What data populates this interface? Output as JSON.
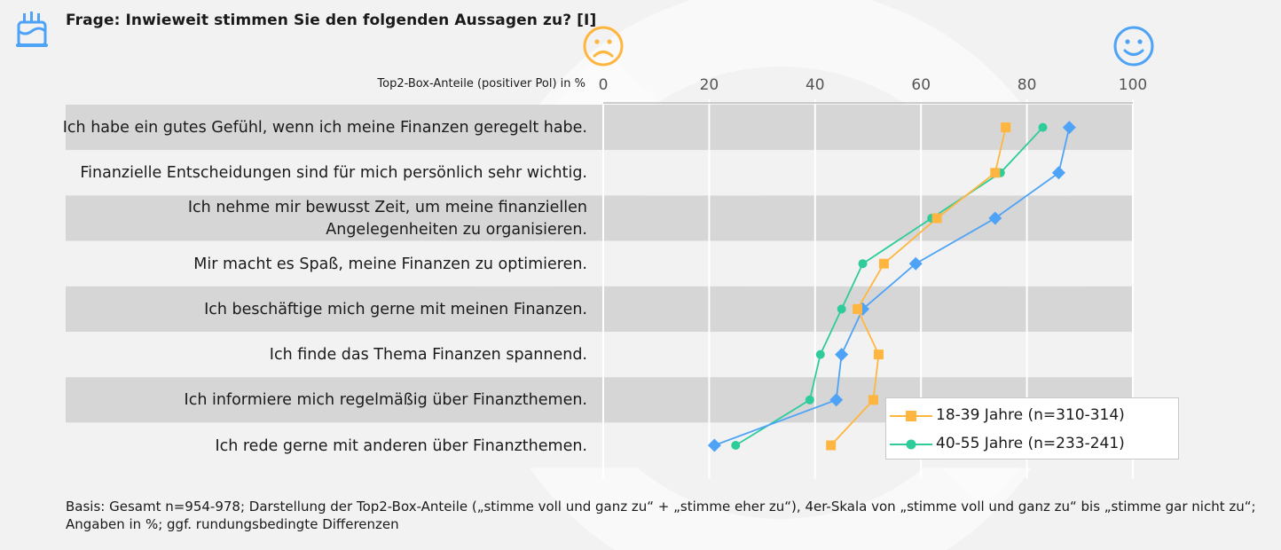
{
  "header": {
    "title": "Frage: Inwieweit stimmen Sie den folgenden Aussagen zu? [I]",
    "left_icon": "cake-icon",
    "negative_pole_icon": "sad-face-icon",
    "positive_pole_icon": "smiley-face-icon"
  },
  "colors": {
    "series_young": "#ffb640",
    "series_mid": "#2ecc9a",
    "series_old": "#4ea3f7",
    "band": "#d6d6d6",
    "background": "#f2f2f2"
  },
  "chart_data": {
    "type": "line",
    "orientation": "horizontal",
    "axis_caption": "Top2-Box-Anteile (positiver Pol) in %",
    "xlim": [
      0,
      100
    ],
    "xticks": [
      "0",
      "20",
      "40",
      "60",
      "80",
      "100"
    ],
    "categories": [
      "Ich habe ein gutes Gefühl, wenn ich meine Finanzen geregelt habe.",
      "Finanzielle Entscheidungen sind für mich persönlich sehr wichtig.",
      "Ich nehme mir bewusst Zeit, um meine finanziellen Angelegenheiten zu organisieren.",
      "Mir macht es Spaß, meine Finanzen zu optimieren.",
      "Ich beschäftige mich gerne mit meinen Finanzen.",
      "Ich finde das Thema Finanzen spannend.",
      "Ich informiere mich regelmäßig über Finanzthemen.",
      "Ich rede gerne mit anderen über Finanzthemen."
    ],
    "series": [
      {
        "name": "18-39 Jahre (n=310-314)",
        "marker": "square",
        "values": [
          76,
          74,
          63,
          53,
          48,
          52,
          51,
          43
        ]
      },
      {
        "name": "40-55 Jahre (n=233-241)",
        "marker": "circle",
        "values": [
          83,
          75,
          62,
          49,
          45,
          41,
          39,
          25
        ]
      },
      {
        "name": "",
        "marker": "diamond",
        "values": [
          88,
          86,
          74,
          59,
          49,
          45,
          44,
          21
        ]
      }
    ],
    "legend": {
      "position": "bottom-right",
      "entries": [
        "18-39 Jahre (n=310-314)",
        "40-55 Jahre (n=233-241)"
      ]
    },
    "grid": true,
    "alternating_bands": true
  },
  "footnote": "Basis: Gesamt n=954-978; Darstellung der Top2-Box-Anteile („stimme voll und ganz zu“ + „stimme eher zu“), 4er-Skala von „stimme voll und ganz zu“ bis „stimme gar nicht zu“; Angaben in %; ggf. rundungsbedingte Differenzen"
}
